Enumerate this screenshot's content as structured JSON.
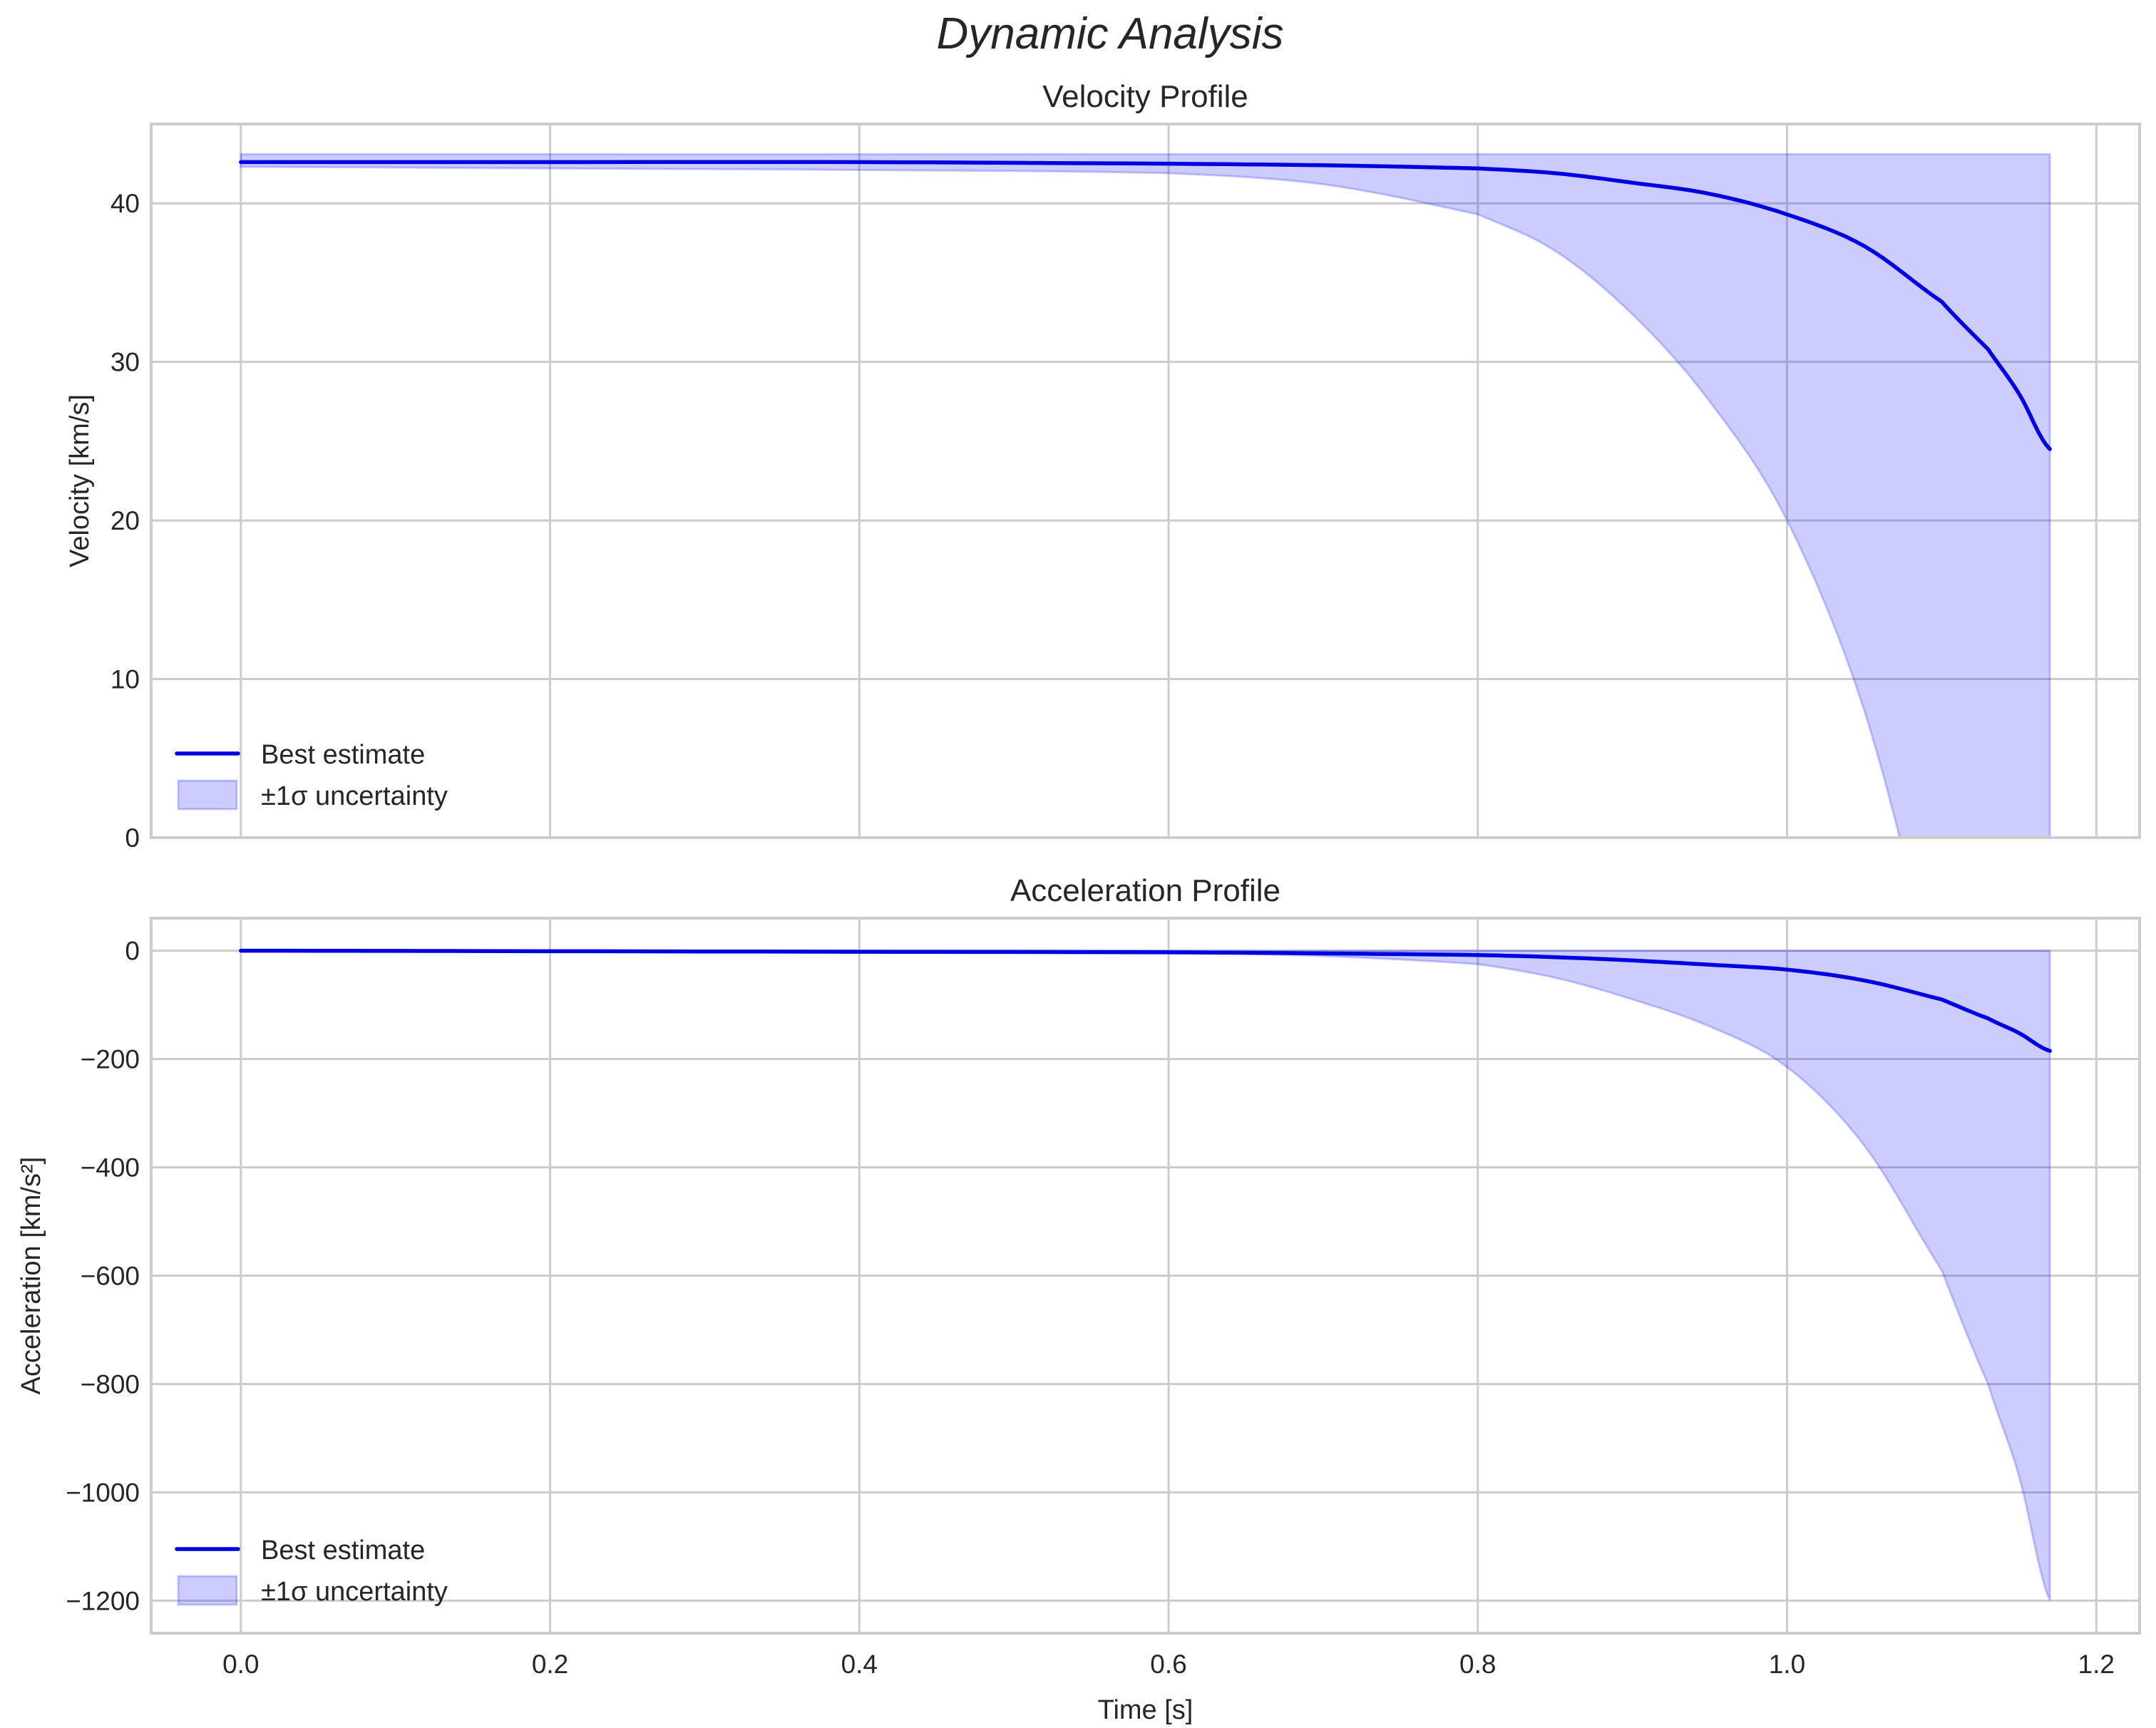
{
  "figure": {
    "title": "Dynamic Analysis"
  },
  "chart_data": [
    {
      "type": "line",
      "title": "Velocity Profile",
      "xlabel": "",
      "ylabel": "Velocity [km/s]",
      "xlim": [
        -0.058,
        1.228
      ],
      "ylim": [
        0,
        45
      ],
      "xticks": [
        0.0,
        0.2,
        0.4,
        0.6,
        0.8,
        1.0,
        1.2
      ],
      "xtick_labels_visible": false,
      "yticks": [
        0,
        10,
        20,
        30,
        40
      ],
      "ytick_labels": [
        "0",
        "10",
        "20",
        "30",
        "40"
      ],
      "grid": true,
      "legend_position": "lower left",
      "legend": [
        "Best estimate",
        "±1σ uncertainty"
      ],
      "x": [
        0.0,
        0.2,
        0.4,
        0.6,
        0.7,
        0.8,
        0.85,
        0.9,
        0.95,
        1.0,
        1.05,
        1.1,
        1.13,
        1.15,
        1.17
      ],
      "series": [
        {
          "name": "Best estimate",
          "color": "#0000e0",
          "values": [
            42.6,
            42.6,
            42.6,
            42.5,
            42.4,
            42.2,
            41.9,
            41.3,
            40.6,
            39.3,
            37.3,
            33.8,
            30.8,
            28.0,
            24.5
          ]
        },
        {
          "name": "±1σ upper",
          "values": [
            43.1,
            43.1,
            43.1,
            43.1,
            43.1,
            43.1,
            43.1,
            43.1,
            43.1,
            43.1,
            43.1,
            43.1,
            43.1,
            43.1,
            43.1
          ]
        },
        {
          "name": "±1σ lower",
          "values": [
            42.3,
            42.2,
            42.1,
            41.9,
            41.2,
            39.3,
            37.0,
            33.0,
            27.5,
            20.0,
            8.0,
            -10.0,
            -25.0,
            -35.0,
            -48.0
          ]
        }
      ],
      "band_color": "#0000ff",
      "band_alpha": 0.2
    },
    {
      "type": "line",
      "title": "Acceleration Profile",
      "xlabel": "Time [s]",
      "ylabel": "Acceleration [km/s²]",
      "xlim": [
        -0.058,
        1.228
      ],
      "ylim": [
        -1260,
        60
      ],
      "xticks": [
        0.0,
        0.2,
        0.4,
        0.6,
        0.8,
        1.0,
        1.2
      ],
      "xtick_labels": [
        "0.0",
        "0.2",
        "0.4",
        "0.6",
        "0.8",
        "1.0",
        "1.2"
      ],
      "yticks": [
        0,
        -200,
        -400,
        -600,
        -800,
        -1000,
        -1200
      ],
      "ytick_labels": [
        "0",
        "−200",
        "−400",
        "−600",
        "−800",
        "−1000",
        "−1200"
      ],
      "grid": true,
      "legend_position": "lower left",
      "legend": [
        "Best estimate",
        "±1σ uncertainty"
      ],
      "x": [
        0.0,
        0.2,
        0.4,
        0.6,
        0.7,
        0.8,
        0.85,
        0.9,
        0.95,
        1.0,
        1.05,
        1.1,
        1.13,
        1.15,
        1.17
      ],
      "series": [
        {
          "name": "Best estimate",
          "color": "#0000e0",
          "values": [
            0,
            -1,
            -2,
            -3,
            -5,
            -8,
            -12,
            -18,
            -26,
            -35,
            -55,
            -90,
            -125,
            -152,
            -185
          ]
        },
        {
          "name": "±1σ upper",
          "values": [
            0,
            0,
            0,
            0,
            0,
            0,
            0,
            0,
            0,
            0,
            0,
            0,
            0,
            0,
            0
          ]
        },
        {
          "name": "±1σ lower",
          "values": [
            0,
            -1,
            -2,
            -4,
            -10,
            -25,
            -50,
            -90,
            -140,
            -215,
            -360,
            -590,
            -800,
            -970,
            -1200
          ]
        }
      ],
      "band_color": "#0000ff",
      "band_alpha": 0.2
    }
  ]
}
